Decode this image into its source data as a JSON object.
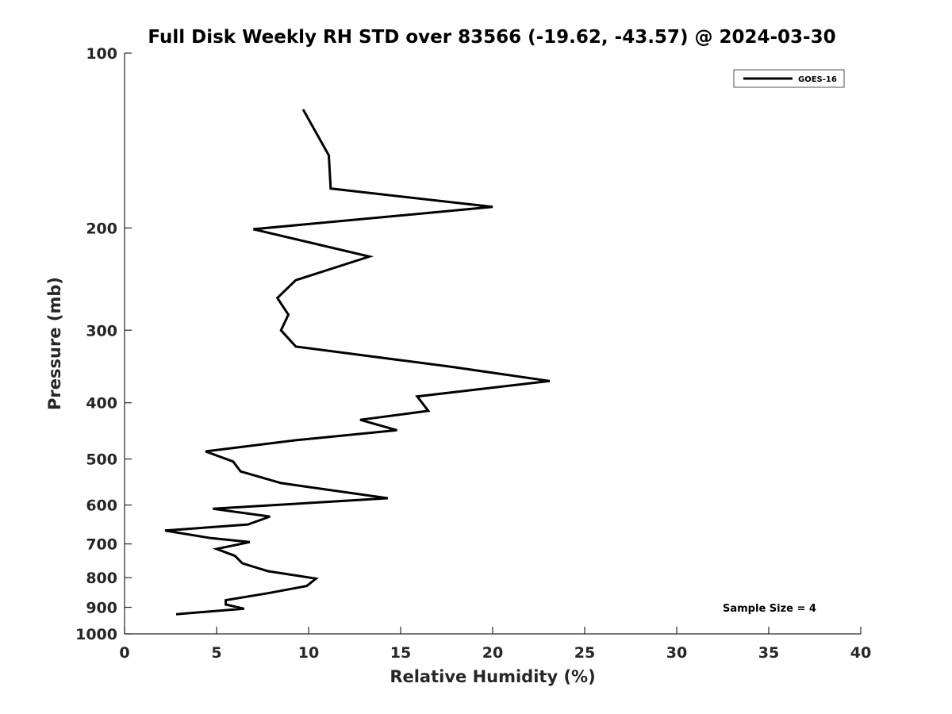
{
  "chart_data": {
    "type": "line",
    "title": "Full Disk Weekly RH STD over 83566 (-19.62, -43.57) @ 2024-03-30",
    "xlabel": "Relative Humidity (%)",
    "ylabel": "Pressure (mb)",
    "xlim": [
      0,
      40
    ],
    "ylim": [
      100,
      1000
    ],
    "yscale": "log",
    "yreversed": true,
    "xticks": [
      0,
      5,
      10,
      15,
      20,
      25,
      30,
      35,
      40
    ],
    "xtick_labels": [
      "0",
      "5",
      "10",
      "15",
      "20",
      "25",
      "30",
      "35",
      "40"
    ],
    "yticks": [
      100,
      200,
      300,
      400,
      500,
      600,
      700,
      800,
      900,
      1000
    ],
    "ytick_labels": [
      "100",
      "200",
      "300",
      "400",
      "500",
      "600",
      "700",
      "800",
      "900",
      "1000"
    ],
    "grid": false,
    "legend_position": "top-right",
    "annotation": "Sample Size = 4",
    "series": [
      {
        "name": "GOES-16",
        "color": "#000000",
        "points": [
          [
            9.7,
            125
          ],
          [
            11.1,
            150
          ],
          [
            11.2,
            171
          ],
          [
            20.0,
            184
          ],
          [
            7.0,
            201
          ],
          [
            13.3,
            224
          ],
          [
            9.3,
            246
          ],
          [
            8.3,
            264
          ],
          [
            8.9,
            282
          ],
          [
            8.5,
            300
          ],
          [
            9.3,
            320
          ],
          [
            17.8,
            347
          ],
          [
            23.1,
            367
          ],
          [
            15.9,
            390
          ],
          [
            16.5,
            413
          ],
          [
            12.8,
            428
          ],
          [
            14.8,
            446
          ],
          [
            9.3,
            464
          ],
          [
            4.4,
            485
          ],
          [
            5.9,
            505
          ],
          [
            6.3,
            525
          ],
          [
            8.5,
            550
          ],
          [
            14.3,
            584
          ],
          [
            4.8,
            609
          ],
          [
            7.9,
            628
          ],
          [
            6.7,
            648
          ],
          [
            2.2,
            664
          ],
          [
            4.7,
            684
          ],
          [
            6.8,
            695
          ],
          [
            5.0,
            714
          ],
          [
            6.0,
            734
          ],
          [
            6.4,
            756
          ],
          [
            7.8,
            780
          ],
          [
            10.4,
            803
          ],
          [
            9.9,
            827
          ],
          [
            7.8,
            851
          ],
          [
            5.5,
            875
          ],
          [
            5.5,
            890
          ],
          [
            6.5,
            905
          ],
          [
            2.8,
            925
          ]
        ]
      }
    ]
  }
}
